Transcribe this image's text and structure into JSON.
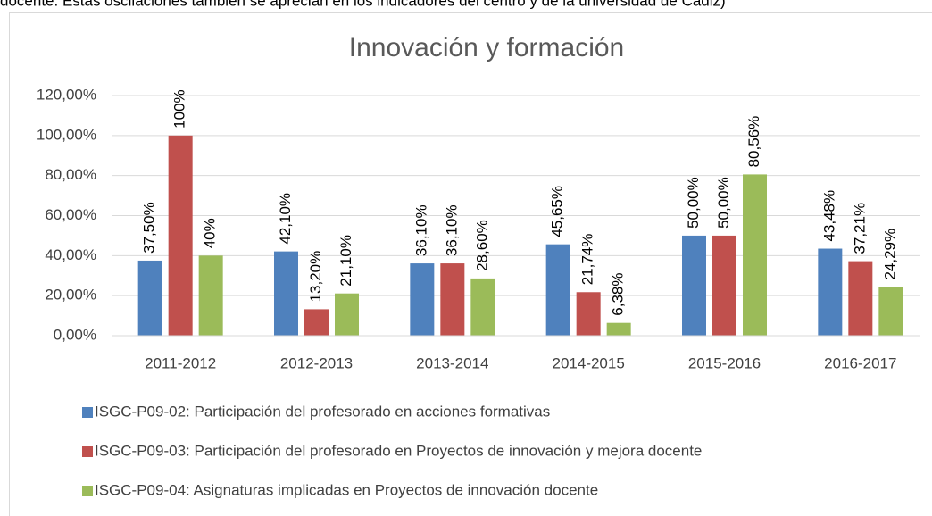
{
  "header_text": "docente. Estas oscilaciones también se aprecian en los indicadores del centro y de la universidad de Cádiz)",
  "chart_data": {
    "type": "bar",
    "title": "Innovación  y formación",
    "categories": [
      "2011-2012",
      "2012-2013",
      "2013-2014",
      "2014-2015",
      "2015-2016",
      "2016-2017"
    ],
    "series": [
      {
        "name": "ISGC-P09-02: Participación del profesorado en acciones formativas",
        "color": "#4f81bd",
        "values": [
          37.5,
          42.1,
          36.1,
          45.65,
          50,
          43.48
        ],
        "value_labels": [
          "37,50%",
          "42,10%",
          "36,10%",
          "45,65%",
          "50,00%",
          "43,48%"
        ]
      },
      {
        "name": "ISGC-P09-03: Participación del profesorado en Proyectos de innovación y mejora docente",
        "color": "#c0504d",
        "values": [
          100,
          13.2,
          36.1,
          21.74,
          50,
          37.21
        ],
        "value_labels": [
          "100%",
          "13,20%",
          "36,10%",
          "21,74%",
          "50,00%",
          "37,21%"
        ]
      },
      {
        "name": "ISGC-P09-04: Asignaturas implicadas en Proyectos de innovación docente",
        "color": "#9bbb59",
        "values": [
          40,
          21.1,
          28.6,
          6.38,
          80.56,
          24.29
        ],
        "value_labels": [
          "40%",
          "21,10%",
          "28,60%",
          "6,38%",
          "80,56%",
          "24,29%"
        ]
      }
    ],
    "ylim": [
      0,
      120
    ],
    "yticks": [
      {
        "value": 0,
        "label": "0,00%"
      },
      {
        "value": 20,
        "label": "20,00%"
      },
      {
        "value": 40,
        "label": "40,00%"
      },
      {
        "value": 60,
        "label": "60,00%"
      },
      {
        "value": 80,
        "label": "80,00%"
      },
      {
        "value": 100,
        "label": "100,00%"
      },
      {
        "value": 120,
        "label": "120,00%"
      }
    ],
    "grid": true,
    "legend": "bottom"
  }
}
